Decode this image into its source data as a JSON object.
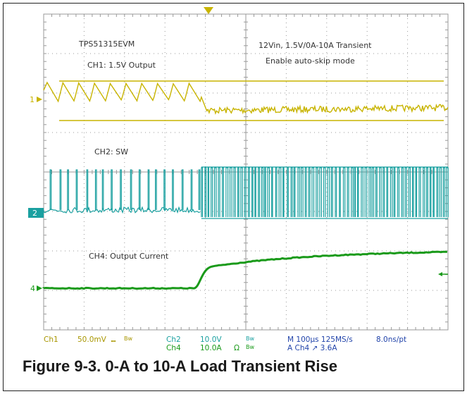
{
  "caption": "Figure 9-3. 0-A to 10-A Load Transient Rise",
  "colors": {
    "ch1": "#c8b400",
    "ch2": "#1aa0a0",
    "ch4": "#1a9a1a",
    "grid": "#9a9a9a"
  },
  "chart_data": {
    "type": "line",
    "title": "",
    "annotations": {
      "device": "TPS51315EVM",
      "conditions": "12Vin, 1.5V/0A-10A Transient",
      "mode": "Enable auto-skip mode",
      "ch1_label": "CH1: 1.5V Output",
      "ch2_label": "CH2: SW",
      "ch4_label": "CH4: Output Current"
    },
    "channel_markers": [
      "1",
      "2",
      "4"
    ],
    "readout": {
      "ch1": "Ch1",
      "ch1_scale": "50.0mV",
      "ch1_coupling": "⑉",
      "ch1_bw": "Bw",
      "ch2": "Ch2",
      "ch2_scale": "10.0V",
      "ch2_bw": "Bw",
      "ch4": "Ch4",
      "ch4_scale": "10.0A",
      "ch4_term": "Ω",
      "ch4_bw": "Bw",
      "timebase": "M 100μs 125MS/s",
      "resolution": "8.0ns/pt",
      "trigger": "A Ch4 ↗ 3.6A"
    },
    "x_divisions": 10,
    "y_divisions": 8,
    "step_division": 3.9,
    "series": [
      {
        "channel": "CH1",
        "before": "sawtooth ripple",
        "after": "low-amplitude noise"
      },
      {
        "channel": "CH2",
        "before": "sparse switching pulses",
        "after": "dense switching pulses"
      },
      {
        "channel": "CH4",
        "before_A": 0,
        "after_A": 10
      }
    ]
  }
}
